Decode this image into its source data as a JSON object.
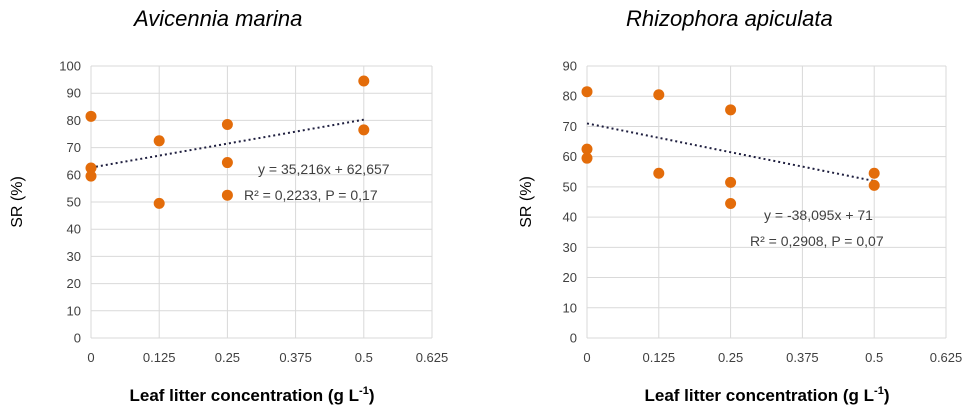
{
  "chart_data": [
    {
      "type": "scatter",
      "title": "Avicennia marina",
      "xlabel": "Leaf litter concentration (g L-1)",
      "ylabel": "SR (%)",
      "xlim": [
        0,
        0.625
      ],
      "ylim": [
        0,
        100
      ],
      "xticks": [
        0,
        0.125,
        0.25,
        0.375,
        0.5,
        0.625
      ],
      "xtick_labels": [
        "0",
        "0.125",
        "0.25",
        "0.375",
        "0.5",
        "0.625"
      ],
      "yticks": [
        0,
        10,
        20,
        30,
        40,
        50,
        60,
        70,
        80,
        90,
        100
      ],
      "points": [
        {
          "x": 0,
          "y": 81.5
        },
        {
          "x": 0,
          "y": 62.5
        },
        {
          "x": 0,
          "y": 59.5
        },
        {
          "x": 0.125,
          "y": 72.5
        },
        {
          "x": 0.125,
          "y": 49.5
        },
        {
          "x": 0.25,
          "y": 78.5
        },
        {
          "x": 0.25,
          "y": 64.5
        },
        {
          "x": 0.25,
          "y": 52.5
        },
        {
          "x": 0.5,
          "y": 94.5
        },
        {
          "x": 0.5,
          "y": 76.5
        }
      ],
      "trendline": {
        "slope": 35.216,
        "intercept": 62.657,
        "x_range": [
          0,
          0.5
        ]
      },
      "equation": "y = 35,216x  + 62,657",
      "stats": "R² = 0,2233,  P = 0,17",
      "marker_color": "#E36C0A",
      "grid": true
    },
    {
      "type": "scatter",
      "title": "Rhizophora apiculata",
      "xlabel": "Leaf litter concentration (g L-1)",
      "ylabel": "SR (%)",
      "xlim": [
        0,
        0.625
      ],
      "ylim": [
        0,
        90
      ],
      "xticks": [
        0,
        0.125,
        0.25,
        0.375,
        0.5,
        0.625
      ],
      "xtick_labels": [
        "0",
        "0.125",
        "0.25",
        "0.375",
        "0.5",
        "0.625"
      ],
      "yticks": [
        0,
        10,
        20,
        30,
        40,
        50,
        60,
        70,
        80,
        90
      ],
      "points": [
        {
          "x": 0,
          "y": 81.5
        },
        {
          "x": 0,
          "y": 62.5
        },
        {
          "x": 0,
          "y": 59.5
        },
        {
          "x": 0.125,
          "y": 80.5
        },
        {
          "x": 0.125,
          "y": 54.5
        },
        {
          "x": 0.25,
          "y": 75.5
        },
        {
          "x": 0.25,
          "y": 51.5
        },
        {
          "x": 0.25,
          "y": 44.5
        },
        {
          "x": 0.5,
          "y": 54.5
        },
        {
          "x": 0.5,
          "y": 50.5
        }
      ],
      "trendline": {
        "slope": -38.095,
        "intercept": 71,
        "x_range": [
          0,
          0.5
        ]
      },
      "equation": "y = -38,095x  + 71",
      "stats": "R² = 0,2908,  P = 0,07",
      "marker_color": "#E36C0A",
      "grid": true
    }
  ]
}
